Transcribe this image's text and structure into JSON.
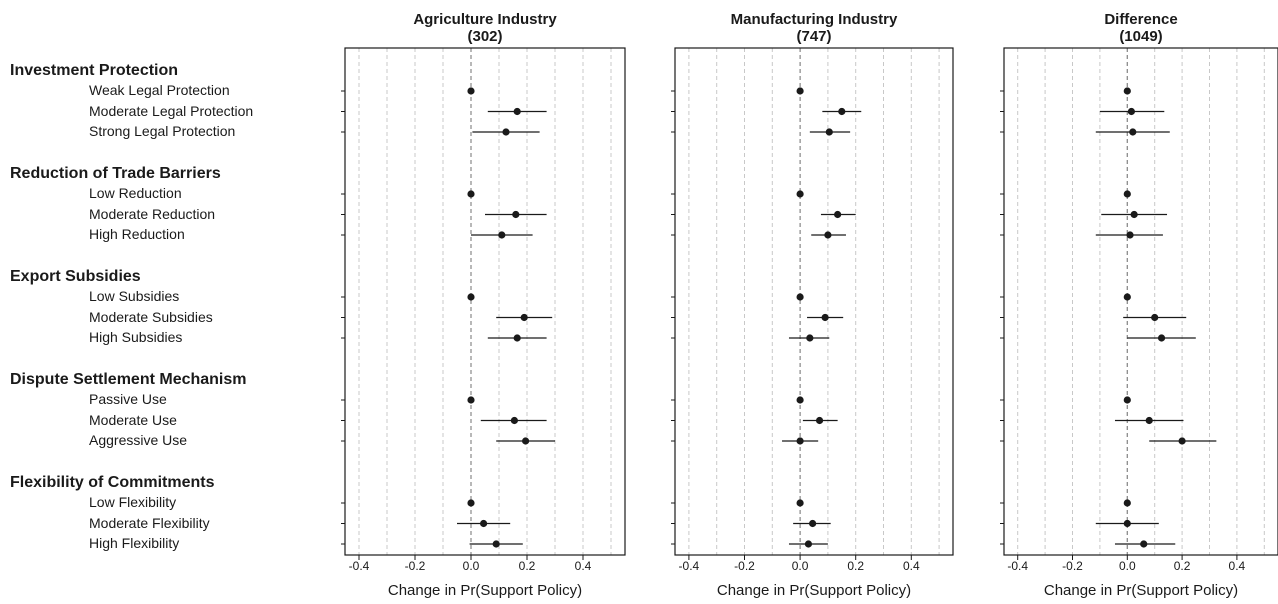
{
  "chart_data": {
    "type": "scatter",
    "subtype": "coefficient-plot",
    "xlabel": "Change in Pr(Support Policy)",
    "xlim": [
      -0.45,
      0.55
    ],
    "xticks": [
      -0.4,
      -0.2,
      0.0,
      0.2,
      0.4
    ],
    "tick_labels": [
      "-0.4",
      "-0.2",
      "0.0",
      "0.2",
      "0.4"
    ],
    "grid": true,
    "reference_line": 0,
    "colors": {
      "point": "#1a1a1a",
      "interval": "#1a1a1a",
      "grid": "#c8c8c8",
      "zero_line": "#888888"
    },
    "groups": [
      {
        "label": "Investment Protection",
        "levels": [
          "Weak Legal Protection",
          "Moderate Legal Protection",
          "Strong Legal Protection"
        ]
      },
      {
        "label": "Reduction of Trade Barriers",
        "levels": [
          "Low Reduction",
          "Moderate Reduction",
          "High Reduction"
        ]
      },
      {
        "label": "Export Subsidies",
        "levels": [
          "Low Subsidies",
          "Moderate Subsidies",
          "High Subsidies"
        ]
      },
      {
        "label": "Dispute Settlement Mechanism",
        "levels": [
          "Passive Use",
          "Moderate Use",
          "Aggressive Use"
        ]
      },
      {
        "label": "Flexibility of Commitments",
        "levels": [
          "Low Flexibility",
          "Moderate Flexibility",
          "High Flexibility"
        ]
      }
    ],
    "panels": [
      {
        "title": "Agriculture Industry",
        "n": "(302)",
        "estimates": [
          [
            0,
            0,
            0
          ],
          [
            0.165,
            0.06,
            0.27
          ],
          [
            0.125,
            0.005,
            0.245
          ],
          [
            0,
            0,
            0
          ],
          [
            0.16,
            0.05,
            0.27
          ],
          [
            0.11,
            0.0,
            0.22
          ],
          [
            0,
            0,
            0
          ],
          [
            0.19,
            0.09,
            0.29
          ],
          [
            0.165,
            0.06,
            0.27
          ],
          [
            0,
            0,
            0
          ],
          [
            0.155,
            0.035,
            0.27
          ],
          [
            0.195,
            0.09,
            0.3
          ],
          [
            0,
            0,
            0
          ],
          [
            0.045,
            -0.05,
            0.14
          ],
          [
            0.09,
            -0.005,
            0.185
          ]
        ]
      },
      {
        "title": "Manufacturing Industry",
        "n": "(747)",
        "estimates": [
          [
            0,
            0,
            0
          ],
          [
            0.15,
            0.08,
            0.22
          ],
          [
            0.105,
            0.035,
            0.18
          ],
          [
            0,
            0,
            0
          ],
          [
            0.135,
            0.075,
            0.2
          ],
          [
            0.1,
            0.04,
            0.165
          ],
          [
            0,
            0,
            0
          ],
          [
            0.09,
            0.025,
            0.155
          ],
          [
            0.035,
            -0.04,
            0.105
          ],
          [
            0,
            0,
            0
          ],
          [
            0.07,
            0.01,
            0.135
          ],
          [
            0.0,
            -0.065,
            0.065
          ],
          [
            0,
            0,
            0
          ],
          [
            0.045,
            -0.025,
            0.11
          ],
          [
            0.03,
            -0.04,
            0.1
          ]
        ]
      },
      {
        "title": "Difference",
        "n": "(1049)",
        "estimates": [
          [
            0,
            0,
            0
          ],
          [
            0.015,
            -0.1,
            0.135
          ],
          [
            0.02,
            -0.115,
            0.155
          ],
          [
            0,
            0,
            0
          ],
          [
            0.025,
            -0.095,
            0.145
          ],
          [
            0.01,
            -0.115,
            0.13
          ],
          [
            0,
            0,
            0
          ],
          [
            0.1,
            -0.015,
            0.215
          ],
          [
            0.125,
            0.0,
            0.25
          ],
          [
            0,
            0,
            0
          ],
          [
            0.08,
            -0.045,
            0.205
          ],
          [
            0.2,
            0.08,
            0.325
          ],
          [
            0,
            0,
            0
          ],
          [
            0.0,
            -0.115,
            0.115
          ],
          [
            0.06,
            -0.045,
            0.175
          ]
        ]
      }
    ]
  }
}
